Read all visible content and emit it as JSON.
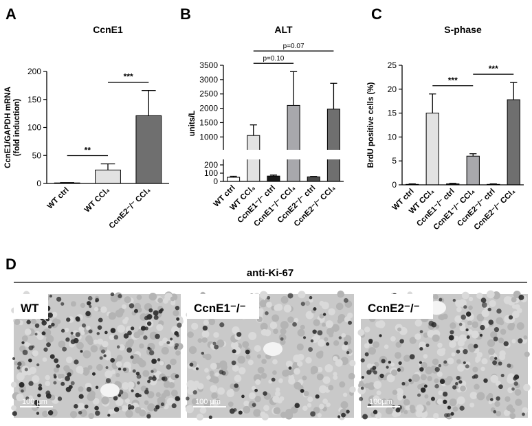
{
  "chart_data": [
    {
      "type": "bar",
      "panel": "A",
      "title": "CcnE1",
      "ylabel": [
        "CcnE1/GAPDH mRNA",
        "(fold induction)"
      ],
      "categories": [
        "WT ctrl",
        "WT CCl₄",
        "CcnE2⁻/⁻ CCl₄"
      ],
      "values": [
        1,
        24,
        121
      ],
      "errors": [
        0.5,
        11,
        45
      ],
      "colors": [
        "#ffffff",
        "#e2e2e2",
        "#6f6f6f"
      ],
      "ylim": [
        0,
        200
      ],
      "yticks": [
        0,
        50,
        100,
        150,
        200
      ],
      "annotations": [
        {
          "text": "**",
          "from": 0,
          "to": 1
        },
        {
          "text": "***",
          "from": 1,
          "to": 2
        }
      ]
    },
    {
      "type": "bar",
      "panel": "B",
      "title": "ALT",
      "ylabel": [
        "units/L"
      ],
      "categories": [
        "WT ctrl",
        "WT CCl₄",
        "CcnE1⁻/⁻ ctrl",
        "CcnE1⁻/⁻ CCl₄",
        "CcnE2⁻/⁻ ctrl",
        "CcnE2⁻/⁻ CCl₄"
      ],
      "values": [
        50,
        1050,
        65,
        2100,
        55,
        1970
      ],
      "errors": [
        12,
        370,
        12,
        1180,
        5,
        900
      ],
      "colors": [
        "#ffffff",
        "#e2e2e2",
        "#1a1a1a",
        "#a8a8ac",
        "#4a4a4a",
        "#6f6f6f"
      ],
      "ylim": [
        0,
        3500
      ],
      "ybreak": [
        250,
        600
      ],
      "yticks": [
        0,
        100,
        200,
        1000,
        1500,
        2000,
        2500,
        3000,
        3500
      ],
      "annotations": [
        {
          "text": "p=0.10",
          "from": 1,
          "to": 3
        },
        {
          "text": "p=0.07",
          "from": 1,
          "to": 5
        }
      ]
    },
    {
      "type": "bar",
      "panel": "C",
      "title": "S-phase",
      "ylabel": [
        "BrdU positive cells (%)"
      ],
      "categories": [
        "WT ctrl",
        "WT CCl₄",
        "CcnE1⁻/⁻ ctrl",
        "CcnE1⁻/⁻ CCl₄",
        "CcnE2⁻/⁻ ctrl",
        "CcnE2⁻/⁻ CCl₄"
      ],
      "values": [
        0.1,
        15,
        0.2,
        6,
        0.1,
        17.8
      ],
      "errors": [
        0.1,
        4,
        0.1,
        0.5,
        0.1,
        3.6
      ],
      "colors": [
        "#ffffff",
        "#e2e2e2",
        "#1a1a1a",
        "#a8a8ac",
        "#4a4a4a",
        "#6f6f6f"
      ],
      "ylim": [
        0,
        25
      ],
      "yticks": [
        0,
        5,
        10,
        15,
        20,
        25
      ],
      "annotations": [
        {
          "text": "***",
          "from": 1,
          "to": 3
        },
        {
          "text": "***",
          "from": 3,
          "to": 5
        }
      ]
    }
  ],
  "panel_d": {
    "letter": "D",
    "title": "anti-Ki-67",
    "images": [
      {
        "label": "WT",
        "scale": "100 µm"
      },
      {
        "label": "CcnE1⁻/⁻",
        "scale": "100 µm"
      },
      {
        "label": "CcnE2⁻/⁻",
        "scale": "100µm"
      }
    ]
  }
}
